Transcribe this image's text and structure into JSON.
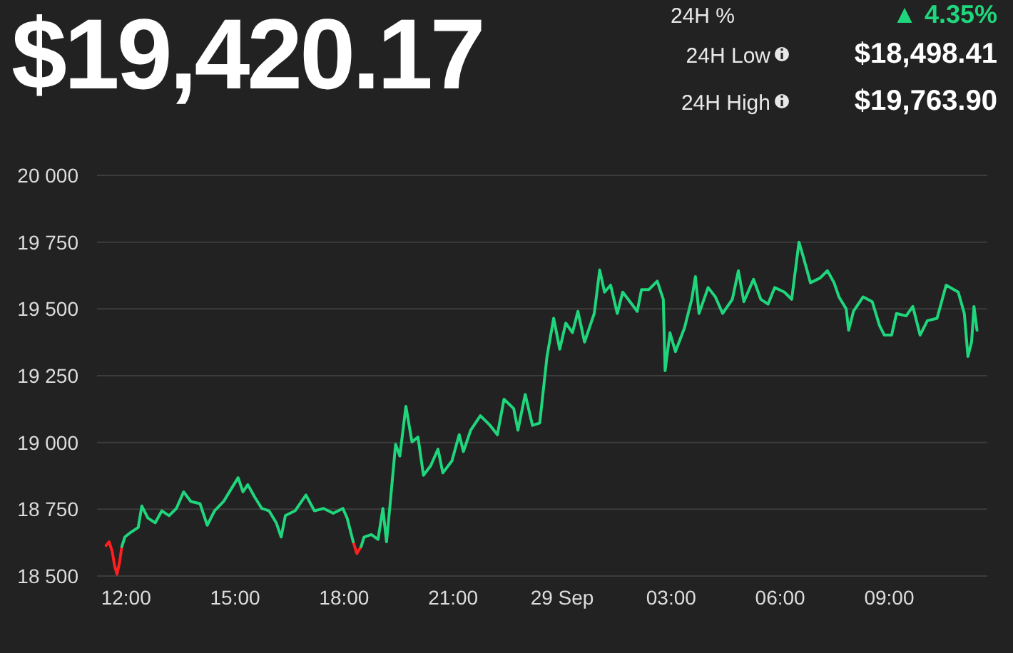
{
  "chart_data": {
    "type": "line",
    "title": "$19,420.17",
    "annotations": [
      "24H %",
      "▲ 4.35%",
      "24H Low",
      "$18,498.41",
      "24H High",
      "$19,763.90"
    ],
    "x": [
      "--09-28T11:27",
      "--09-28T11:32",
      "--09-28T11:37",
      "--09-28T11:41",
      "--09-28T11:45",
      "--09-28T11:49",
      "--09-28T11:53",
      "--09-28T11:58",
      "--09-28T12:08",
      "--09-28T12:20",
      "--09-28T12:26",
      "--09-28T12:36",
      "--09-28T12:48",
      "--09-28T12:59",
      "--09-28T13:11",
      "--09-28T13:23",
      "--09-28T13:35",
      "--09-28T13:47",
      "--09-28T14:02",
      "--09-28T14:14",
      "--09-28T14:26",
      "--09-28T14:41",
      "--09-28T14:53",
      "--09-28T15:05",
      "--09-28T15:13",
      "--09-28T15:21",
      "--09-28T15:32",
      "--09-28T15:44",
      "--09-28T15:56",
      "--09-28T16:08",
      "--09-28T16:16",
      "--09-28T16:23",
      "--09-28T16:39",
      "--09-28T16:57",
      "--09-28T17:11",
      "--09-28T17:26",
      "--09-28T17:42",
      "--09-28T17:58",
      "--09-28T18:05",
      "--09-28T18:15",
      "--09-28T18:21",
      "--09-28T18:28",
      "--09-28T18:33",
      "--09-28T18:45",
      "--09-28T18:56",
      "--09-28T19:04",
      "--09-28T19:10",
      "--09-28T19:16",
      "--09-28T19:25",
      "--09-28T19:32",
      "--09-28T19:42",
      "--09-28T19:52",
      "--09-28T20:02",
      "--09-28T20:11",
      "--09-28T20:23",
      "--09-28T20:35",
      "--09-28T20:43",
      "--09-28T20:58",
      "--09-28T21:10",
      "--09-28T21:17",
      "--09-28T21:29",
      "--09-28T21:45",
      "--09-28T22:01",
      "--09-28T22:13",
      "--09-28T22:24",
      "--09-28T22:40",
      "--09-28T22:47",
      "--09-28T22:59",
      "--09-28T23:11",
      "--09-28T23:23",
      "--09-28T23:35",
      "--09-28T23:46",
      "--09-28T23:56",
      "--09-29T00:06",
      "--09-29T00:17",
      "--09-29T00:26",
      "--09-29T00:37",
      "--09-29T00:53",
      "--09-29T01:02",
      "--09-29T01:10",
      "--09-29T01:20",
      "--09-29T01:31",
      "--09-29T01:40",
      "--09-29T01:52",
      "--09-29T02:04",
      "--09-29T02:11",
      "--09-29T02:23",
      "--09-29T02:37",
      "--09-29T02:47",
      "--09-29T02:50",
      "--09-29T02:58",
      "--09-29T03:07",
      "--09-29T03:22",
      "--09-29T03:34",
      "--09-29T03:40",
      "--09-29T03:46",
      "--09-29T04:01",
      "--09-29T04:13",
      "--09-29T04:25",
      "--09-29T04:41",
      "--09-29T04:51",
      "--09-29T05:00",
      "--09-29T05:16",
      "--09-29T05:28",
      "--09-29T05:40",
      "--09-29T05:51",
      "--09-29T06:07",
      "--09-29T06:19",
      "--09-29T06:31",
      "--09-29T06:38",
      "--09-29T06:50",
      "--09-29T07:06",
      "--09-29T07:18",
      "--09-29T07:29",
      "--09-29T07:37",
      "--09-29T07:49",
      "--09-29T07:53",
      "--09-29T08:01",
      "--09-29T08:17",
      "--09-29T08:32",
      "--09-29T08:44",
      "--09-29T08:52",
      "--09-29T09:04",
      "--09-29T09:12",
      "--09-29T09:28",
      "--09-29T09:39",
      "--09-29T09:51",
      "--09-29T10:03",
      "--09-29T10:19",
      "--09-29T10:34",
      "--09-29T10:54",
      "--09-29T11:04",
      "--09-29T11:10",
      "--09-29T11:16",
      "--09-29T11:20",
      "--09-29T11:25"
    ],
    "series": [
      {
        "color": "#1fd67c",
        "values": [
          null,
          null,
          null,
          null,
          null,
          null,
          18610,
          18646,
          18664,
          18682,
          18762,
          18717,
          18699,
          18744,
          18726,
          18753,
          18815,
          18779,
          18771,
          18690,
          18744,
          18779,
          18824,
          18868,
          18815,
          18842,
          18797,
          18753,
          18744,
          18699,
          18646,
          18726,
          18744,
          18803,
          18744,
          18753,
          18735,
          18753,
          18717,
          18628,
          null,
          18610,
          18646,
          18655,
          18637,
          18753,
          18628,
          18771,
          18993,
          18949,
          19135,
          19002,
          19020,
          18877,
          18913,
          18975,
          18886,
          18931,
          19029,
          18966,
          19046,
          19100,
          19064,
          19029,
          19162,
          19127,
          19046,
          19180,
          19064,
          19073,
          19322,
          19465,
          19349,
          19447,
          19411,
          19491,
          19376,
          19483,
          19646,
          19563,
          19589,
          19483,
          19563,
          19527,
          19491,
          19572,
          19572,
          19604,
          19536,
          19269,
          19411,
          19340,
          19429,
          19536,
          19621,
          19483,
          19580,
          19545,
          19483,
          19536,
          19643,
          19527,
          19611,
          19536,
          19518,
          19580,
          19563,
          19536,
          19750,
          19696,
          19598,
          19616,
          19643,
          19598,
          19545,
          19500,
          19420,
          19491,
          19545,
          19527,
          19438,
          19402,
          19402,
          19483,
          19474,
          19509,
          19402,
          19456,
          19465,
          19589,
          19563,
          19483,
          19322,
          19376,
          19509,
          19420
        ]
      },
      {
        "color": "#ff1f1f",
        "values": [
          18614,
          18628,
          18593,
          18539,
          18507,
          18548,
          18610,
          null,
          null,
          null,
          null,
          null,
          null,
          null,
          null,
          null,
          null,
          null,
          null,
          null,
          null,
          null,
          null,
          null,
          null,
          null,
          null,
          null,
          null,
          null,
          null,
          null,
          null,
          null,
          null,
          null,
          null,
          null,
          null,
          18628,
          18584,
          18610,
          null,
          null,
          null,
          null,
          null,
          null,
          null,
          null,
          null,
          null,
          null,
          null,
          null,
          null,
          null,
          null,
          null,
          null,
          null,
          null,
          null,
          null,
          null,
          null,
          null,
          null,
          null,
          null,
          null,
          null,
          null,
          null,
          null,
          null,
          null,
          null,
          null,
          null,
          null,
          null,
          null,
          null,
          null,
          null,
          null,
          null,
          null,
          null,
          null,
          null,
          null,
          null,
          null,
          null,
          null,
          null,
          null,
          null,
          null,
          null,
          null,
          null,
          null,
          null,
          null,
          null,
          null,
          null,
          null,
          null,
          null,
          null,
          null,
          null,
          null,
          null,
          null,
          null,
          null,
          null,
          null,
          null,
          null,
          null,
          null,
          null,
          null,
          null,
          null,
          null,
          null,
          null,
          null,
          null
        ]
      }
    ],
    "xlim": [
      "--09-28T11:12",
      "--09-29T11:42"
    ],
    "xticks": [
      {
        "value": "--09-28T12:00",
        "label": "12:00"
      },
      {
        "value": "--09-28T15:00",
        "label": "15:00"
      },
      {
        "value": "--09-28T18:00",
        "label": "18:00"
      },
      {
        "value": "--09-28T21:00",
        "label": "21:00"
      },
      {
        "value": "--09-29T00:00",
        "label": "29 Sep"
      },
      {
        "value": "--09-29T03:00",
        "label": "03:00"
      },
      {
        "value": "--09-29T06:00",
        "label": "06:00"
      },
      {
        "value": "--09-29T09:00",
        "label": "09:00"
      }
    ],
    "ylim": [
      18500,
      20000
    ],
    "yticks": [
      {
        "value": 18500,
        "label": "18 500"
      },
      {
        "value": 18750,
        "label": "18 750"
      },
      {
        "value": 19000,
        "label": "19 000"
      },
      {
        "value": 19250,
        "label": "19 250"
      },
      {
        "value": 19500,
        "label": "19 500"
      },
      {
        "value": 19750,
        "label": "19 750"
      },
      {
        "value": 20000,
        "label": "20 000"
      }
    ],
    "grid": "y",
    "marker": "none",
    "line_style": "solid"
  }
}
